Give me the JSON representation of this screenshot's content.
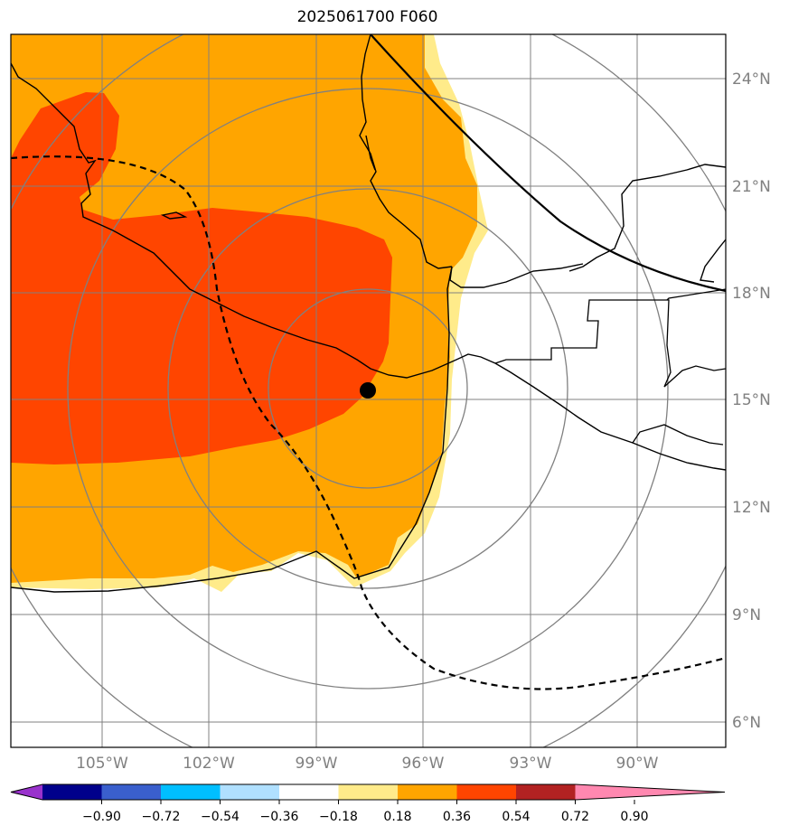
{
  "title": "2025061700 F060",
  "map": {
    "lon_labels": [
      "105°W",
      "102°W",
      "99°W",
      "96°W",
      "93°W",
      "90°W"
    ],
    "lat_labels": [
      "24°N",
      "21°N",
      "18°N",
      "15°N",
      "12°N",
      "9°N",
      "6°N"
    ],
    "grid_color": "#808080",
    "range_ring_color": "#808080",
    "center_marker": "storm-center-dot"
  },
  "colorbar": {
    "tick_labels": [
      "−0.90",
      "−0.72",
      "−0.54",
      "−0.36",
      "−0.18",
      "0.18",
      "0.36",
      "0.54",
      "0.72",
      "0.90"
    ],
    "colors": [
      "#9932cc",
      "#00008b",
      "#3a5fcd",
      "#00bfff",
      "#b0e0ff",
      "#ffffff",
      "#ffeb8a",
      "#ffa500",
      "#ff4500",
      "#b22222",
      "#ff88b0"
    ]
  },
  "fill_colors": {
    "light": "#ffeb8a",
    "orange": "#ffa500",
    "red": "#ff4500"
  }
}
